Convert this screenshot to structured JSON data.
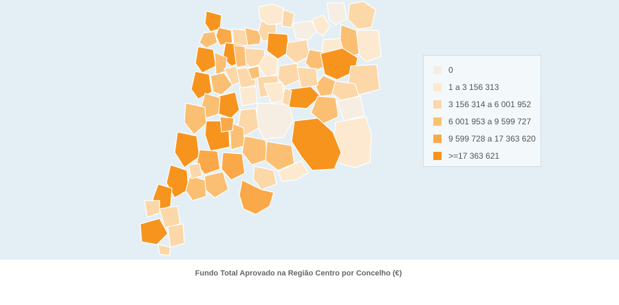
{
  "caption": "Fundo Total Aprovado na Região Centro por Concelho (€)",
  "legend": {
    "items": [
      {
        "label": "0",
        "color": "#f6eee3"
      },
      {
        "label": "1 a 3 156 313",
        "color": "#fde9cf"
      },
      {
        "label": "3 156 314 a 6 001 952",
        "color": "#fcd7a8"
      },
      {
        "label": "6 001 953 a 9 599 727",
        "color": "#fbbf73"
      },
      {
        "label": "9 599 728 a 17 363 620",
        "color": "#fba848"
      },
      {
        "label": ">=17 363 621",
        "color": "#f7941d"
      }
    ]
  },
  "colors": {
    "sea": "#e3eff5",
    "border": "#ffffff"
  }
}
